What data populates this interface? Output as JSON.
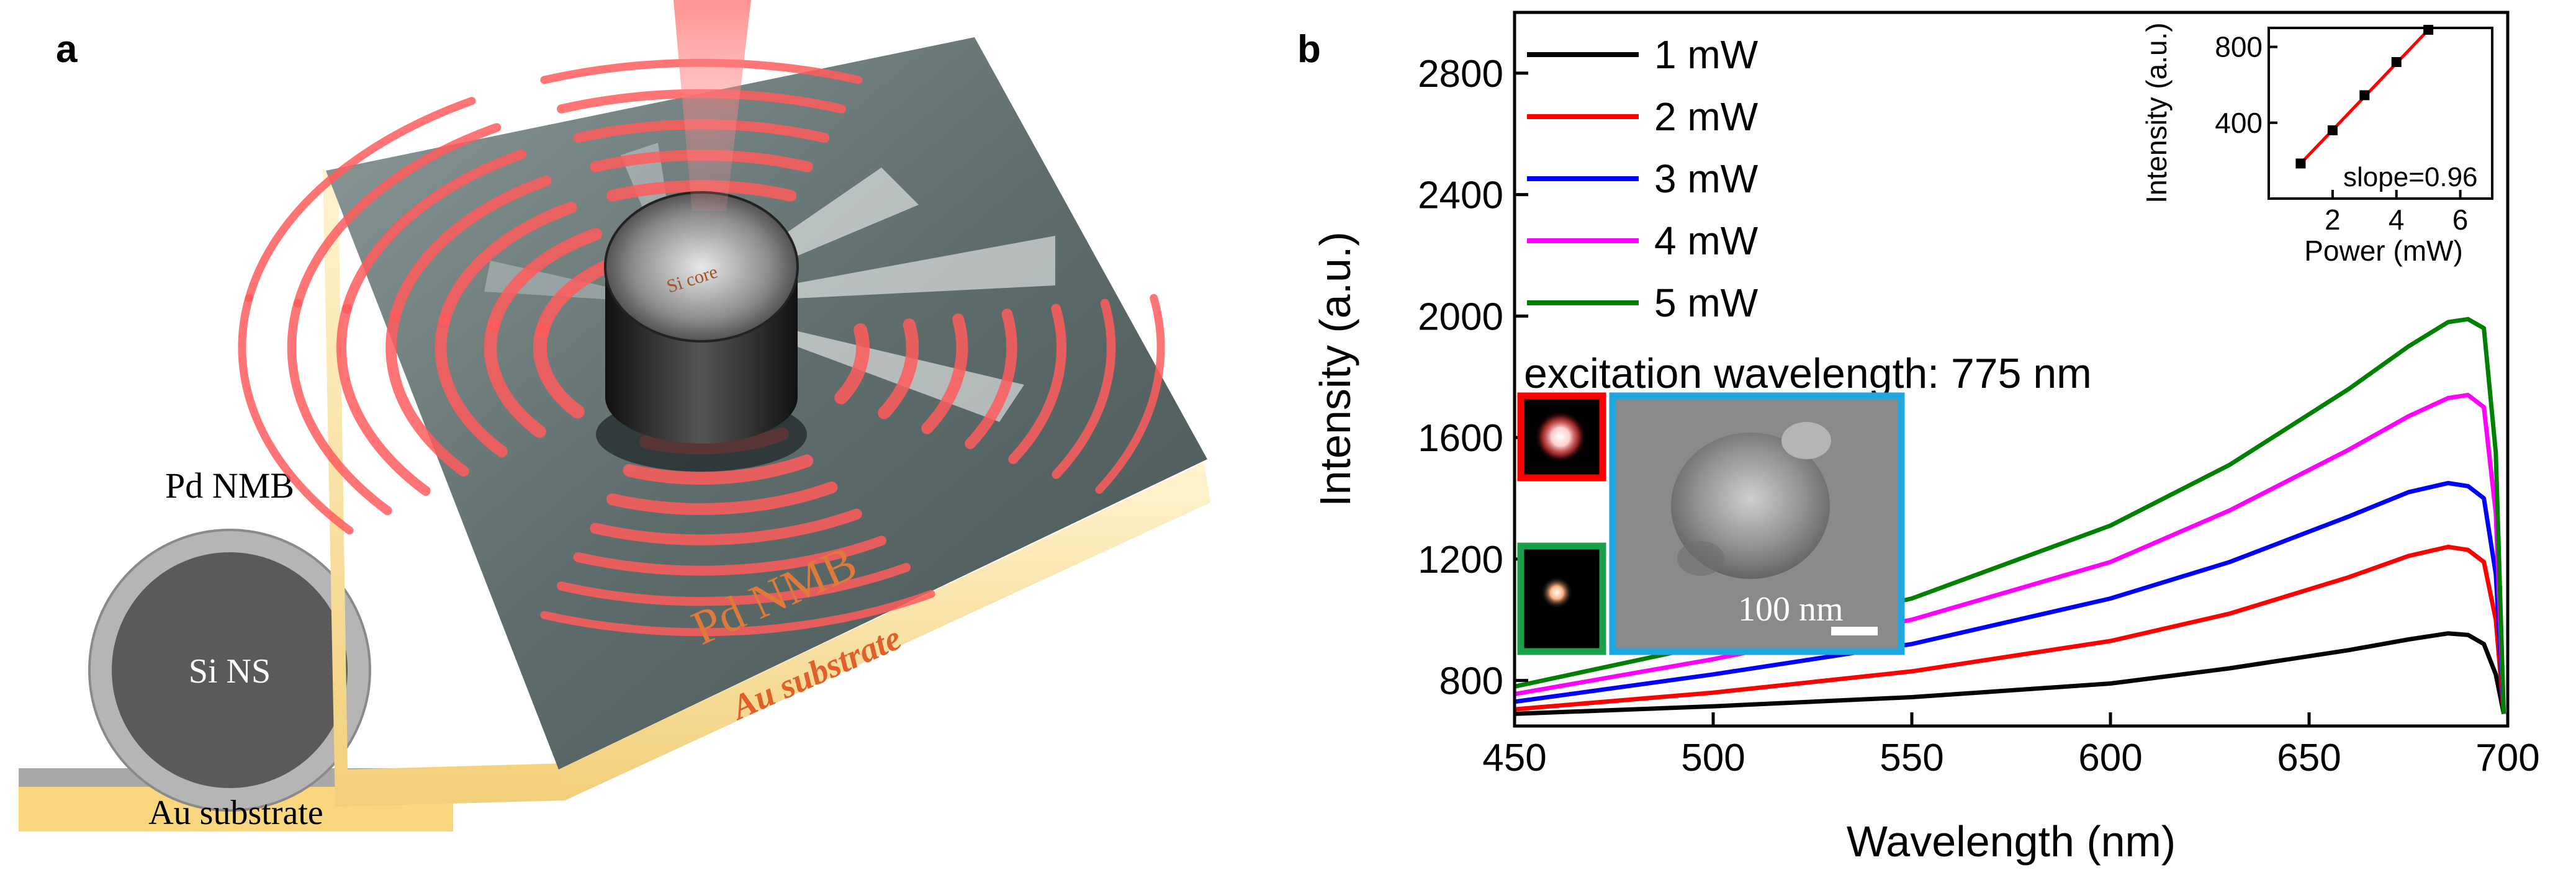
{
  "panel_a": {
    "label": "a",
    "left_schematic": {
      "shell_label": "Pd NMB",
      "core_label": "Si NS",
      "substrate_label": "Au substrate"
    },
    "device_3d": {
      "core_label": "Si core",
      "film_label": "Pd  NMB",
      "substrate_label": "Au  substrate"
    }
  },
  "panel_b": {
    "label": "b",
    "annotation": "excitation wavelength: 775 nm",
    "scale_bar": "100 nm",
    "chart_data": [
      {
        "type": "line",
        "xlabel": "Wavelength (nm)",
        "ylabel": "Intensity (a.u.)",
        "xlim": [
          450,
          700
        ],
        "ylim": [
          650,
          3000
        ],
        "x_ticks": [
          "450",
          "500",
          "550",
          "600",
          "650",
          "700"
        ],
        "y_ticks": [
          "800",
          "1200",
          "1600",
          "2000",
          "2400",
          "2800"
        ],
        "legend_position": "top-left",
        "x": [
          450,
          500,
          550,
          600,
          630,
          660,
          675,
          685,
          690,
          694,
          697,
          699
        ],
        "series": [
          {
            "name": "1 mW",
            "color": "#000000",
            "values": [
              690,
              715,
              745,
              790,
              840,
              900,
              935,
              955,
              950,
              920,
              820,
              690
            ]
          },
          {
            "name": "2 mW",
            "color": "#ff0000",
            "values": [
              705,
              760,
              830,
              930,
              1020,
              1140,
              1210,
              1240,
              1230,
              1190,
              1000,
              690
            ]
          },
          {
            "name": "3 mW",
            "color": "#0000ff",
            "values": [
              730,
              820,
              920,
              1070,
              1190,
              1340,
              1420,
              1450,
              1440,
              1400,
              1150,
              690
            ]
          },
          {
            "name": "4 mW",
            "color": "#ff00ff",
            "values": [
              755,
              870,
              1000,
              1190,
              1360,
              1560,
              1670,
              1730,
              1740,
              1700,
              1350,
              690
            ]
          },
          {
            "name": "5 mW",
            "color": "#008000",
            "values": [
              780,
              920,
              1070,
              1310,
              1510,
              1760,
              1900,
              1980,
              1990,
              1960,
              1550,
              690
            ]
          }
        ]
      },
      {
        "type": "scatter",
        "xlabel": "Power (mW)",
        "ylabel": "Intensity (a.u.)",
        "xlim": [
          0,
          7
        ],
        "ylim": [
          0,
          900
        ],
        "x_ticks": [
          "2",
          "4",
          "6"
        ],
        "y_ticks": [
          "400",
          "800"
        ],
        "x": [
          1,
          2,
          3,
          4,
          5
        ],
        "values": [
          185,
          360,
          545,
          720,
          890
        ],
        "fit_color": "#ff0000",
        "annotation": "slope=0.96"
      }
    ]
  }
}
